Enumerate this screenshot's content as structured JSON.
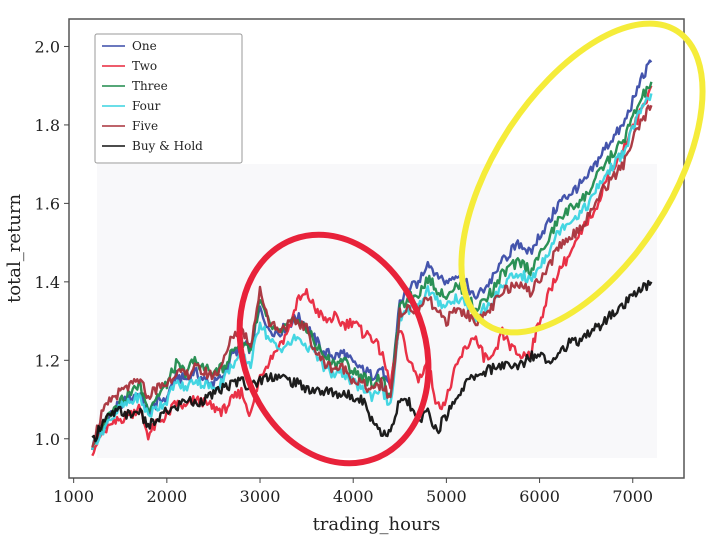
{
  "chart_data": {
    "type": "line",
    "title": "",
    "xlabel": "trading_hours",
    "ylabel": "total_return",
    "xlim": [
      950,
      7550
    ],
    "ylim": [
      0.9,
      2.07
    ],
    "xticks": [
      1000,
      2000,
      3000,
      4000,
      5000,
      6000,
      7000
    ],
    "xtick_labels": [
      "1000",
      "2000",
      "3000",
      "4000",
      "5000",
      "6000",
      "7000"
    ],
    "yticks": [
      1.0,
      1.2,
      1.4,
      1.6,
      1.8,
      2.0
    ],
    "ytick_labels": [
      "1.0",
      "1.2",
      "1.4",
      "1.6",
      "1.8",
      "2.0"
    ],
    "grid": false,
    "legend_position": "top-left",
    "x": [
      1200,
      1300,
      1400,
      1500,
      1600,
      1700,
      1800,
      1900,
      2000,
      2100,
      2200,
      2300,
      2400,
      2500,
      2600,
      2700,
      2800,
      2900,
      3000,
      3100,
      3200,
      3300,
      3400,
      3500,
      3600,
      3700,
      3800,
      3900,
      4000,
      4100,
      4200,
      4300,
      4400,
      4500,
      4600,
      4700,
      4800,
      4900,
      5000,
      5100,
      5200,
      5300,
      5400,
      5500,
      5600,
      5700,
      5800,
      5900,
      6000,
      6100,
      6200,
      6300,
      6400,
      6500,
      6600,
      6700,
      6800,
      6900,
      7000,
      7100,
      7200
    ],
    "series": [
      {
        "name": "One",
        "color": "#3a4ba8",
        "values": [
          0.98,
          1.02,
          1.06,
          1.09,
          1.1,
          1.12,
          1.07,
          1.09,
          1.11,
          1.16,
          1.15,
          1.17,
          1.15,
          1.14,
          1.16,
          1.21,
          1.24,
          1.23,
          1.33,
          1.28,
          1.27,
          1.29,
          1.31,
          1.29,
          1.25,
          1.22,
          1.21,
          1.22,
          1.19,
          1.18,
          1.16,
          1.18,
          1.12,
          1.35,
          1.38,
          1.4,
          1.45,
          1.42,
          1.4,
          1.42,
          1.4,
          1.36,
          1.38,
          1.41,
          1.45,
          1.48,
          1.5,
          1.47,
          1.52,
          1.55,
          1.6,
          1.62,
          1.64,
          1.66,
          1.7,
          1.74,
          1.77,
          1.8,
          1.86,
          1.92,
          1.96
        ]
      },
      {
        "name": "Two",
        "color": "#e8263c",
        "values": [
          0.97,
          1.01,
          1.03,
          1.05,
          1.06,
          1.08,
          1.01,
          1.04,
          1.06,
          1.09,
          1.08,
          1.1,
          1.09,
          1.08,
          1.07,
          1.1,
          1.12,
          1.06,
          1.16,
          1.2,
          1.24,
          1.27,
          1.35,
          1.37,
          1.33,
          1.3,
          1.31,
          1.29,
          1.3,
          1.27,
          1.26,
          1.22,
          1.14,
          1.28,
          1.2,
          1.15,
          1.2,
          1.08,
          1.1,
          1.18,
          1.23,
          1.26,
          1.21,
          1.2,
          1.27,
          1.23,
          1.21,
          1.22,
          1.3,
          1.37,
          1.43,
          1.46,
          1.5,
          1.55,
          1.59,
          1.65,
          1.7,
          1.74,
          1.79,
          1.84,
          1.9
        ]
      },
      {
        "name": "Three",
        "color": "#1f8a4c",
        "values": [
          0.98,
          1.03,
          1.07,
          1.1,
          1.11,
          1.14,
          1.08,
          1.11,
          1.14,
          1.19,
          1.17,
          1.2,
          1.18,
          1.17,
          1.18,
          1.22,
          1.25,
          1.23,
          1.35,
          1.29,
          1.27,
          1.29,
          1.3,
          1.28,
          1.24,
          1.21,
          1.19,
          1.2,
          1.17,
          1.16,
          1.14,
          1.16,
          1.1,
          1.33,
          1.36,
          1.37,
          1.41,
          1.38,
          1.37,
          1.39,
          1.38,
          1.33,
          1.35,
          1.38,
          1.42,
          1.44,
          1.45,
          1.43,
          1.47,
          1.51,
          1.56,
          1.58,
          1.6,
          1.62,
          1.66,
          1.7,
          1.73,
          1.76,
          1.82,
          1.87,
          1.91
        ]
      },
      {
        "name": "Four",
        "color": "#3ad4e0",
        "values": [
          0.98,
          1.02,
          1.05,
          1.08,
          1.09,
          1.11,
          1.06,
          1.08,
          1.1,
          1.14,
          1.13,
          1.15,
          1.14,
          1.13,
          1.15,
          1.19,
          1.21,
          1.19,
          1.3,
          1.25,
          1.23,
          1.24,
          1.26,
          1.24,
          1.21,
          1.18,
          1.16,
          1.17,
          1.14,
          1.13,
          1.11,
          1.13,
          1.08,
          1.3,
          1.33,
          1.34,
          1.38,
          1.35,
          1.34,
          1.36,
          1.35,
          1.31,
          1.33,
          1.35,
          1.39,
          1.41,
          1.42,
          1.4,
          1.44,
          1.48,
          1.53,
          1.55,
          1.57,
          1.59,
          1.63,
          1.67,
          1.7,
          1.73,
          1.79,
          1.84,
          1.88
        ]
      },
      {
        "name": "Five",
        "color": "#a8303a",
        "values": [
          0.99,
          1.06,
          1.1,
          1.12,
          1.13,
          1.15,
          1.11,
          1.13,
          1.14,
          1.17,
          1.16,
          1.18,
          1.17,
          1.16,
          1.19,
          1.26,
          1.28,
          1.24,
          1.38,
          1.3,
          1.28,
          1.29,
          1.3,
          1.28,
          1.22,
          1.19,
          1.18,
          1.18,
          1.15,
          1.14,
          1.12,
          1.14,
          1.1,
          1.32,
          1.33,
          1.32,
          1.36,
          1.32,
          1.3,
          1.33,
          1.32,
          1.3,
          1.31,
          1.34,
          1.37,
          1.39,
          1.4,
          1.37,
          1.41,
          1.44,
          1.49,
          1.51,
          1.53,
          1.56,
          1.6,
          1.64,
          1.67,
          1.7,
          1.76,
          1.81,
          1.85
        ]
      },
      {
        "name": "Buy & Hold",
        "color": "#111111",
        "values": [
          0.99,
          1.04,
          1.06,
          1.07,
          1.06,
          1.07,
          1.03,
          1.05,
          1.07,
          1.08,
          1.1,
          1.09,
          1.1,
          1.11,
          1.13,
          1.14,
          1.15,
          1.13,
          1.15,
          1.16,
          1.16,
          1.15,
          1.14,
          1.13,
          1.12,
          1.12,
          1.12,
          1.11,
          1.11,
          1.1,
          1.05,
          1.02,
          1.01,
          1.1,
          1.09,
          1.04,
          1.07,
          1.02,
          1.06,
          1.1,
          1.14,
          1.16,
          1.17,
          1.18,
          1.19,
          1.18,
          1.19,
          1.21,
          1.22,
          1.2,
          1.22,
          1.24,
          1.25,
          1.26,
          1.28,
          1.3,
          1.32,
          1.34,
          1.36,
          1.38,
          1.4
        ]
      }
    ]
  },
  "annotations": {
    "red_ellipse_color": "#e8223a",
    "yellow_ellipse_color": "#f5ec3a"
  }
}
